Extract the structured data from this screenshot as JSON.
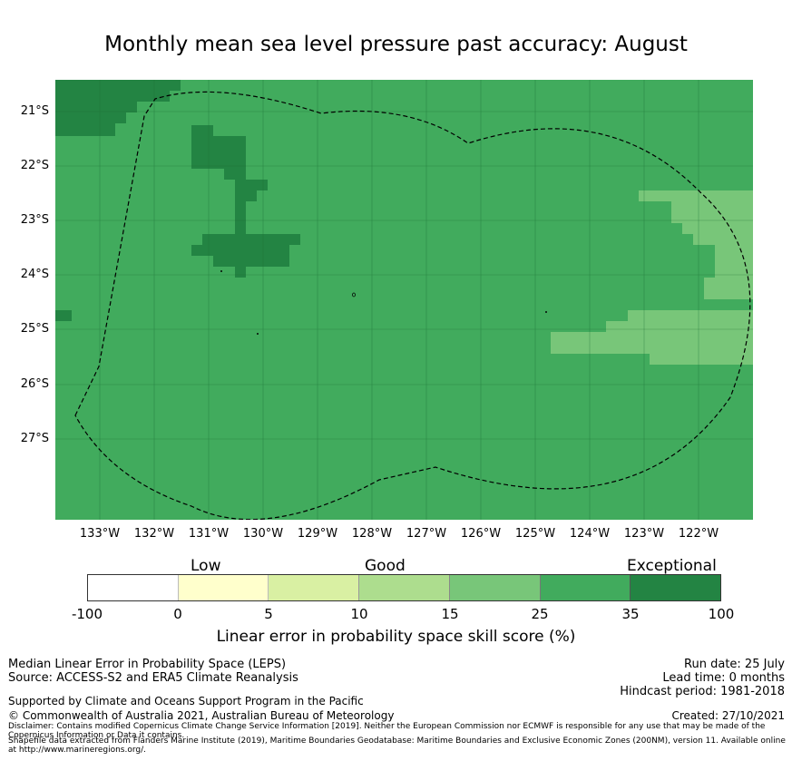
{
  "title": "Monthly mean sea level pressure past accuracy: August",
  "map": {
    "lat_labels": [
      "21°S",
      "22°S",
      "23°S",
      "24°S",
      "25°S",
      "26°S",
      "27°S"
    ],
    "lon_labels": [
      "133°W",
      "132°W",
      "131°W",
      "130°W",
      "129°W",
      "128°W",
      "127°W",
      "126°W",
      "125°W",
      "124°W",
      "123°W",
      "122°W"
    ],
    "colors": {
      "exceptional": "#238443",
      "good_high": "#41ab5d",
      "good_mid": "#78c679"
    }
  },
  "colorbar": {
    "title": "Linear error in probability space skill score (%)",
    "categories": {
      "low": "Low",
      "good": "Good",
      "exceptional": "Exceptional"
    },
    "ticks": [
      "-100",
      "0",
      "5",
      "10",
      "15",
      "25",
      "35",
      "100"
    ],
    "colors": [
      "#ffffff",
      "#ffffcc",
      "#d9f0a3",
      "#addd8e",
      "#78c679",
      "#41ab5d",
      "#238443"
    ]
  },
  "footer": {
    "left1": "Median Linear Error in Probability Space (LEPS)",
    "left2": "Source: ACCESS-S2 and ERA5 Climate Reanalysis",
    "left3": "Supported by Climate and Oceans Support Program in the Pacific",
    "left4": "© Commonwealth of Australia 2021, Australian Bureau of Meteorology",
    "right1": "Run date: 25 July",
    "right2": "Lead time: 0 months",
    "right3": "Hindcast period: 1981-2018",
    "right4": "Created: 27/10/2021",
    "disclaimer1": "Disclaimer: Contains modified Copernicus Climate Change Service Information [2019]. Neither the European Commission nor ECMWF is responsible for any use that may be made of the Copernicus Information or Data it contains.",
    "disclaimer2": "Shapefile data extracted from Flanders Marine Institute (2019), Maritime Boundaries Geodatabase: Maritime Boundaries and Exclusive Economic Zones (200NM), version 11. Available online at http://www.marineregions.org/."
  }
}
